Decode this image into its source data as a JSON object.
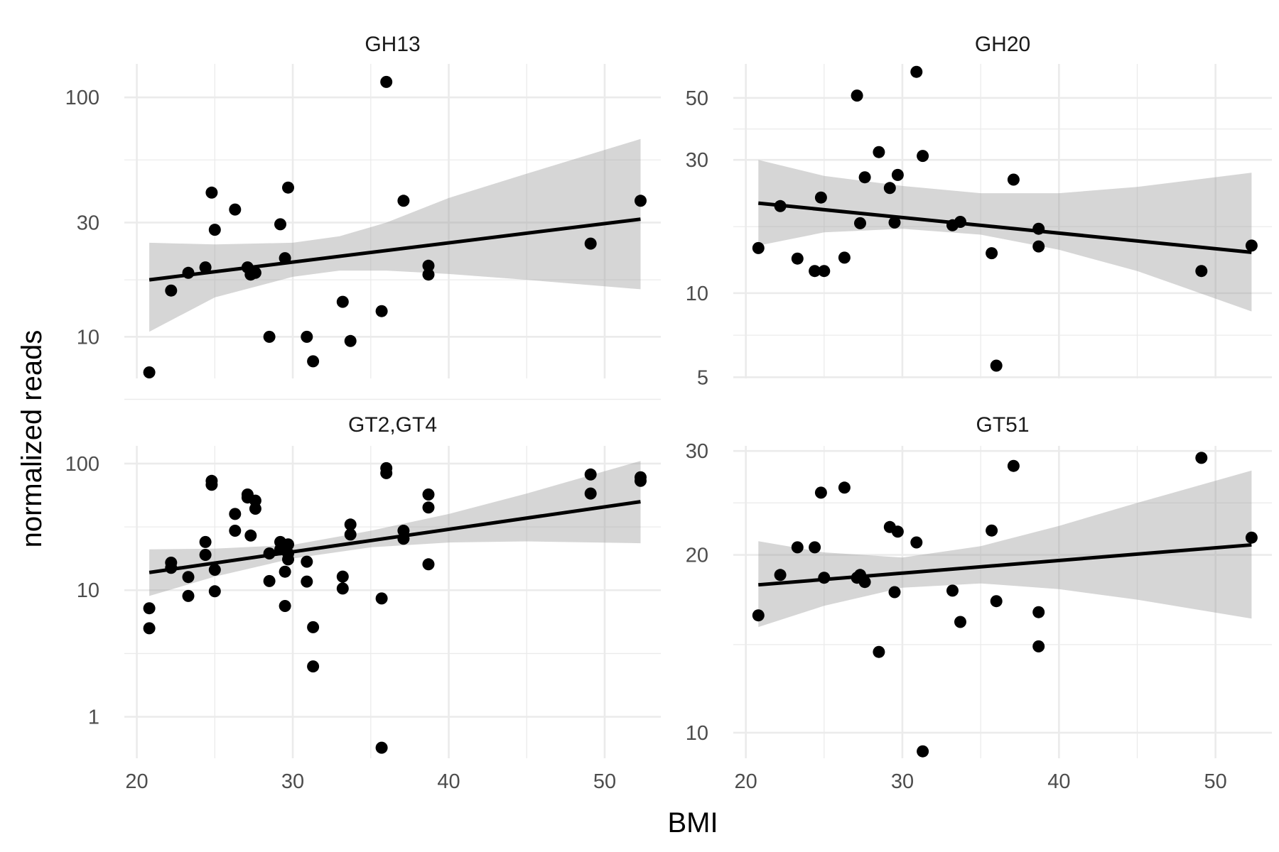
{
  "figure": {
    "xlabel": "BMI",
    "ylabel": "normalized reads"
  },
  "chart_data": [
    {
      "type": "scatter",
      "facet": "GH13",
      "title": "GH13",
      "xlim": [
        19.2,
        53.6
      ],
      "ylim": [
        6.7,
        138
      ],
      "y_scale": "log10",
      "x_ticks": [
        20,
        30,
        40,
        50
      ],
      "y_ticks": [
        10,
        30,
        100
      ],
      "y_minor_ticks": [
        5.48,
        17.3,
        54.8
      ],
      "grid": true,
      "points": [
        {
          "x": 20.8,
          "y": 7.1
        },
        {
          "x": 22.2,
          "y": 15.6
        },
        {
          "x": 23.3,
          "y": 18.5
        },
        {
          "x": 24.4,
          "y": 19.5
        },
        {
          "x": 24.8,
          "y": 40.0
        },
        {
          "x": 25.0,
          "y": 28.0
        },
        {
          "x": 26.3,
          "y": 34.0
        },
        {
          "x": 27.1,
          "y": 19.5
        },
        {
          "x": 27.3,
          "y": 18.2
        },
        {
          "x": 27.6,
          "y": 18.5
        },
        {
          "x": 28.5,
          "y": 10.0
        },
        {
          "x": 29.2,
          "y": 29.5
        },
        {
          "x": 29.5,
          "y": 21.3
        },
        {
          "x": 29.7,
          "y": 42.0
        },
        {
          "x": 30.9,
          "y": 10.0
        },
        {
          "x": 31.3,
          "y": 7.9
        },
        {
          "x": 33.2,
          "y": 14.0
        },
        {
          "x": 33.7,
          "y": 9.6
        },
        {
          "x": 35.7,
          "y": 12.8
        },
        {
          "x": 36.0,
          "y": 116.0
        },
        {
          "x": 37.1,
          "y": 37.0
        },
        {
          "x": 38.7,
          "y": 18.2
        },
        {
          "x": 38.7,
          "y": 19.8
        },
        {
          "x": 49.1,
          "y": 24.5
        },
        {
          "x": 52.3,
          "y": 37.0
        }
      ],
      "fit": {
        "x": [
          20.8,
          52.3
        ],
        "y": [
          17.3,
          31.0
        ]
      },
      "ci": {
        "x": [
          20.8,
          25.0,
          30.0,
          33.0,
          36.0,
          40.0,
          45.0,
          52.3
        ],
        "lower": [
          10.5,
          14.6,
          17.8,
          18.9,
          18.9,
          18.3,
          17.3,
          15.8
        ],
        "upper": [
          24.7,
          24.3,
          24.7,
          26.3,
          30.0,
          38.0,
          48.0,
          67.0
        ]
      }
    },
    {
      "type": "scatter",
      "facet": "GH20",
      "title": "GH20",
      "xlim": [
        19.2,
        53.6
      ],
      "ylim": [
        4.95,
        66.2
      ],
      "y_scale": "log10",
      "x_ticks": [
        20,
        30,
        40,
        50
      ],
      "y_ticks": [
        5,
        10,
        30,
        50
      ],
      "y_minor_ticks": [
        7.07,
        17.3,
        38.7
      ],
      "grid": true,
      "points": [
        {
          "x": 20.8,
          "y": 14.5
        },
        {
          "x": 22.2,
          "y": 20.5
        },
        {
          "x": 23.3,
          "y": 13.3
        },
        {
          "x": 24.4,
          "y": 12.0
        },
        {
          "x": 24.8,
          "y": 22.0
        },
        {
          "x": 25.0,
          "y": 12.0
        },
        {
          "x": 26.3,
          "y": 13.4
        },
        {
          "x": 27.1,
          "y": 51.0
        },
        {
          "x": 27.3,
          "y": 17.8
        },
        {
          "x": 27.6,
          "y": 26.0
        },
        {
          "x": 28.5,
          "y": 32.0
        },
        {
          "x": 29.2,
          "y": 23.8
        },
        {
          "x": 29.5,
          "y": 17.9
        },
        {
          "x": 29.7,
          "y": 26.5
        },
        {
          "x": 30.9,
          "y": 62.0
        },
        {
          "x": 31.3,
          "y": 31.0
        },
        {
          "x": 33.2,
          "y": 17.5
        },
        {
          "x": 33.7,
          "y": 18.0
        },
        {
          "x": 35.7,
          "y": 13.9
        },
        {
          "x": 36.0,
          "y": 5.5
        },
        {
          "x": 37.1,
          "y": 25.5
        },
        {
          "x": 38.7,
          "y": 17.0
        },
        {
          "x": 38.7,
          "y": 14.7
        },
        {
          "x": 49.1,
          "y": 12.0
        },
        {
          "x": 52.3,
          "y": 14.8
        }
      ],
      "fit": {
        "x": [
          20.8,
          52.3
        ],
        "y": [
          21.0,
          14.0
        ]
      },
      "ci": {
        "x": [
          20.8,
          25.0,
          30.0,
          35.0,
          40.0,
          45.0,
          52.3
        ],
        "lower": [
          14.8,
          16.5,
          17.0,
          16.2,
          14.3,
          12.0,
          8.6
        ],
        "upper": [
          30.0,
          26.3,
          24.2,
          22.8,
          22.8,
          24.0,
          27.0
        ]
      }
    },
    {
      "type": "scatter",
      "facet": "GT2,GT4",
      "title": "GT2,GT4",
      "xlim": [
        19.2,
        53.6
      ],
      "ylim": [
        0.47,
        138
      ],
      "y_scale": "log10",
      "x_ticks": [
        20,
        30,
        40,
        50
      ],
      "y_ticks": [
        1,
        10,
        100
      ],
      "y_minor_ticks": [
        3.16,
        31.6
      ],
      "grid": true,
      "points": [
        {
          "x": 20.8,
          "y": 7.2
        },
        {
          "x": 20.8,
          "y": 5.0
        },
        {
          "x": 22.2,
          "y": 16.5
        },
        {
          "x": 22.2,
          "y": 15.0
        },
        {
          "x": 23.3,
          "y": 12.7
        },
        {
          "x": 23.3,
          "y": 9.0
        },
        {
          "x": 24.4,
          "y": 24.0
        },
        {
          "x": 24.4,
          "y": 19.0
        },
        {
          "x": 24.8,
          "y": 73.0
        },
        {
          "x": 24.8,
          "y": 68.0
        },
        {
          "x": 25.0,
          "y": 14.5
        },
        {
          "x": 25.0,
          "y": 9.8
        },
        {
          "x": 26.3,
          "y": 40.0
        },
        {
          "x": 26.3,
          "y": 29.5
        },
        {
          "x": 27.1,
          "y": 57.0
        },
        {
          "x": 27.1,
          "y": 54.0
        },
        {
          "x": 27.3,
          "y": 27.0
        },
        {
          "x": 27.6,
          "y": 51.0
        },
        {
          "x": 27.6,
          "y": 44.0
        },
        {
          "x": 28.5,
          "y": 19.5
        },
        {
          "x": 28.5,
          "y": 11.8
        },
        {
          "x": 29.2,
          "y": 24.0
        },
        {
          "x": 29.2,
          "y": 21.0
        },
        {
          "x": 29.5,
          "y": 14.0
        },
        {
          "x": 29.5,
          "y": 7.5
        },
        {
          "x": 29.7,
          "y": 23.0
        },
        {
          "x": 29.7,
          "y": 19.5
        },
        {
          "x": 29.7,
          "y": 17.5
        },
        {
          "x": 30.9,
          "y": 16.8
        },
        {
          "x": 30.9,
          "y": 11.7
        },
        {
          "x": 31.3,
          "y": 5.1
        },
        {
          "x": 31.3,
          "y": 2.5
        },
        {
          "x": 33.2,
          "y": 12.8
        },
        {
          "x": 33.2,
          "y": 10.3
        },
        {
          "x": 33.7,
          "y": 33.0
        },
        {
          "x": 33.7,
          "y": 27.5
        },
        {
          "x": 35.7,
          "y": 8.6
        },
        {
          "x": 35.7,
          "y": 0.57
        },
        {
          "x": 36.0,
          "y": 92.0
        },
        {
          "x": 36.0,
          "y": 84.0
        },
        {
          "x": 37.1,
          "y": 29.5
        },
        {
          "x": 37.1,
          "y": 25.5
        },
        {
          "x": 38.7,
          "y": 57.0
        },
        {
          "x": 38.7,
          "y": 45.0
        },
        {
          "x": 38.7,
          "y": 16.0
        },
        {
          "x": 49.1,
          "y": 82.0
        },
        {
          "x": 49.1,
          "y": 58.0
        },
        {
          "x": 52.3,
          "y": 78.0
        },
        {
          "x": 52.3,
          "y": 73.0
        }
      ],
      "fit": {
        "x": [
          20.8,
          52.3
        ],
        "y": [
          13.8,
          50.0
        ]
      },
      "ci": {
        "x": [
          20.8,
          25.0,
          30.0,
          35.0,
          40.0,
          45.0,
          52.3
        ],
        "lower": [
          9.0,
          12.8,
          17.8,
          21.8,
          23.8,
          24.3,
          23.5
        ],
        "upper": [
          21.0,
          21.3,
          22.8,
          29.5,
          40.0,
          58.0,
          105.0
        ]
      }
    },
    {
      "type": "scatter",
      "facet": "GT51",
      "title": "GT51",
      "xlim": [
        19.2,
        53.6
      ],
      "ylim": [
        9.05,
        30.6
      ],
      "y_scale": "log10",
      "x_ticks": [
        20,
        30,
        40,
        50
      ],
      "y_ticks": [
        10,
        20,
        30
      ],
      "y_minor_ticks": [
        14.1,
        24.5
      ],
      "grid": true,
      "points": [
        {
          "x": 20.8,
          "y": 15.8
        },
        {
          "x": 22.2,
          "y": 18.5
        },
        {
          "x": 23.3,
          "y": 20.6
        },
        {
          "x": 24.4,
          "y": 20.6
        },
        {
          "x": 24.8,
          "y": 25.5
        },
        {
          "x": 25.0,
          "y": 18.3
        },
        {
          "x": 26.3,
          "y": 26.0
        },
        {
          "x": 27.1,
          "y": 18.3
        },
        {
          "x": 27.3,
          "y": 18.5
        },
        {
          "x": 27.6,
          "y": 18.0
        },
        {
          "x": 28.5,
          "y": 13.7
        },
        {
          "x": 29.2,
          "y": 22.3
        },
        {
          "x": 29.5,
          "y": 17.3
        },
        {
          "x": 29.7,
          "y": 21.9
        },
        {
          "x": 30.9,
          "y": 21.0
        },
        {
          "x": 31.3,
          "y": 9.3
        },
        {
          "x": 33.2,
          "y": 17.4
        },
        {
          "x": 33.7,
          "y": 15.4
        },
        {
          "x": 35.7,
          "y": 22.0
        },
        {
          "x": 36.0,
          "y": 16.7
        },
        {
          "x": 37.1,
          "y": 28.3
        },
        {
          "x": 38.7,
          "y": 16.0
        },
        {
          "x": 38.7,
          "y": 14.0
        },
        {
          "x": 49.1,
          "y": 29.2
        },
        {
          "x": 52.3,
          "y": 21.4
        }
      ],
      "fit": {
        "x": [
          20.8,
          52.3
        ],
        "y": [
          17.8,
          20.8
        ]
      },
      "ci": {
        "x": [
          20.8,
          25.0,
          30.0,
          35.0,
          40.0,
          45.0,
          52.3
        ],
        "lower": [
          15.1,
          16.4,
          17.6,
          17.9,
          17.5,
          16.8,
          15.6
        ],
        "upper": [
          21.1,
          20.2,
          19.8,
          20.7,
          22.4,
          24.5,
          27.8
        ]
      }
    }
  ]
}
